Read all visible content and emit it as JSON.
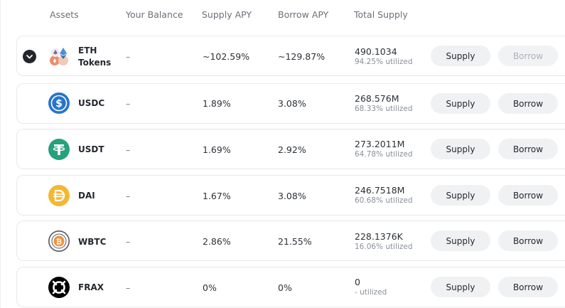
{
  "header": {
    "assets": "Assets",
    "balance": "Your Balance",
    "supply_apy": "Supply APY",
    "borrow_apy": "Borrow APY",
    "total_supply": "Total Supply"
  },
  "rows": [
    {
      "name_line1": "ETH",
      "name_line2": "Tokens",
      "balance": "–",
      "supply_apy": "~102.59%",
      "borrow_apy": "~129.87%",
      "total_supply": "490.1034",
      "utilized": "94.25% utilized",
      "supply_label": "Supply",
      "borrow_label": "Borrow",
      "icon": "eth-tokens-icon"
    },
    {
      "name": "USDC",
      "balance": "–",
      "supply_apy": "1.89%",
      "borrow_apy": "3.08%",
      "total_supply": "268.576M",
      "utilized": "68.33% utilized",
      "supply_label": "Supply",
      "borrow_label": "Borrow",
      "icon": "usdc-icon"
    },
    {
      "name": "USDT",
      "balance": "–",
      "supply_apy": "1.69%",
      "borrow_apy": "2.92%",
      "total_supply": "273.2011M",
      "utilized": "64.78% utilized",
      "supply_label": "Supply",
      "borrow_label": "Borrow",
      "icon": "usdt-icon"
    },
    {
      "name": "DAI",
      "balance": "–",
      "supply_apy": "1.67%",
      "borrow_apy": "3.08%",
      "total_supply": "246.7518M",
      "utilized": "60.68% utilized",
      "supply_label": "Supply",
      "borrow_label": "Borrow",
      "icon": "dai-icon"
    },
    {
      "name": "WBTC",
      "balance": "–",
      "supply_apy": "2.86%",
      "borrow_apy": "21.55%",
      "total_supply": "228.1376K",
      "utilized": "16.06% utilized",
      "supply_label": "Supply",
      "borrow_label": "Borrow",
      "icon": "wbtc-icon"
    },
    {
      "name": "FRAX",
      "balance": "–",
      "supply_apy": "0%",
      "borrow_apy": "0%",
      "total_supply": "0",
      "utilized": "- utilized",
      "supply_label": "Supply",
      "borrow_label": "Borrow",
      "icon": "frax-icon"
    }
  ],
  "colors": {
    "usdc": "#2775ca",
    "usdt": "#26a17b",
    "dai": "#f4b731",
    "wbtc": "#f09242",
    "frax": "#000000",
    "button_bg": "#f0f1f3"
  }
}
